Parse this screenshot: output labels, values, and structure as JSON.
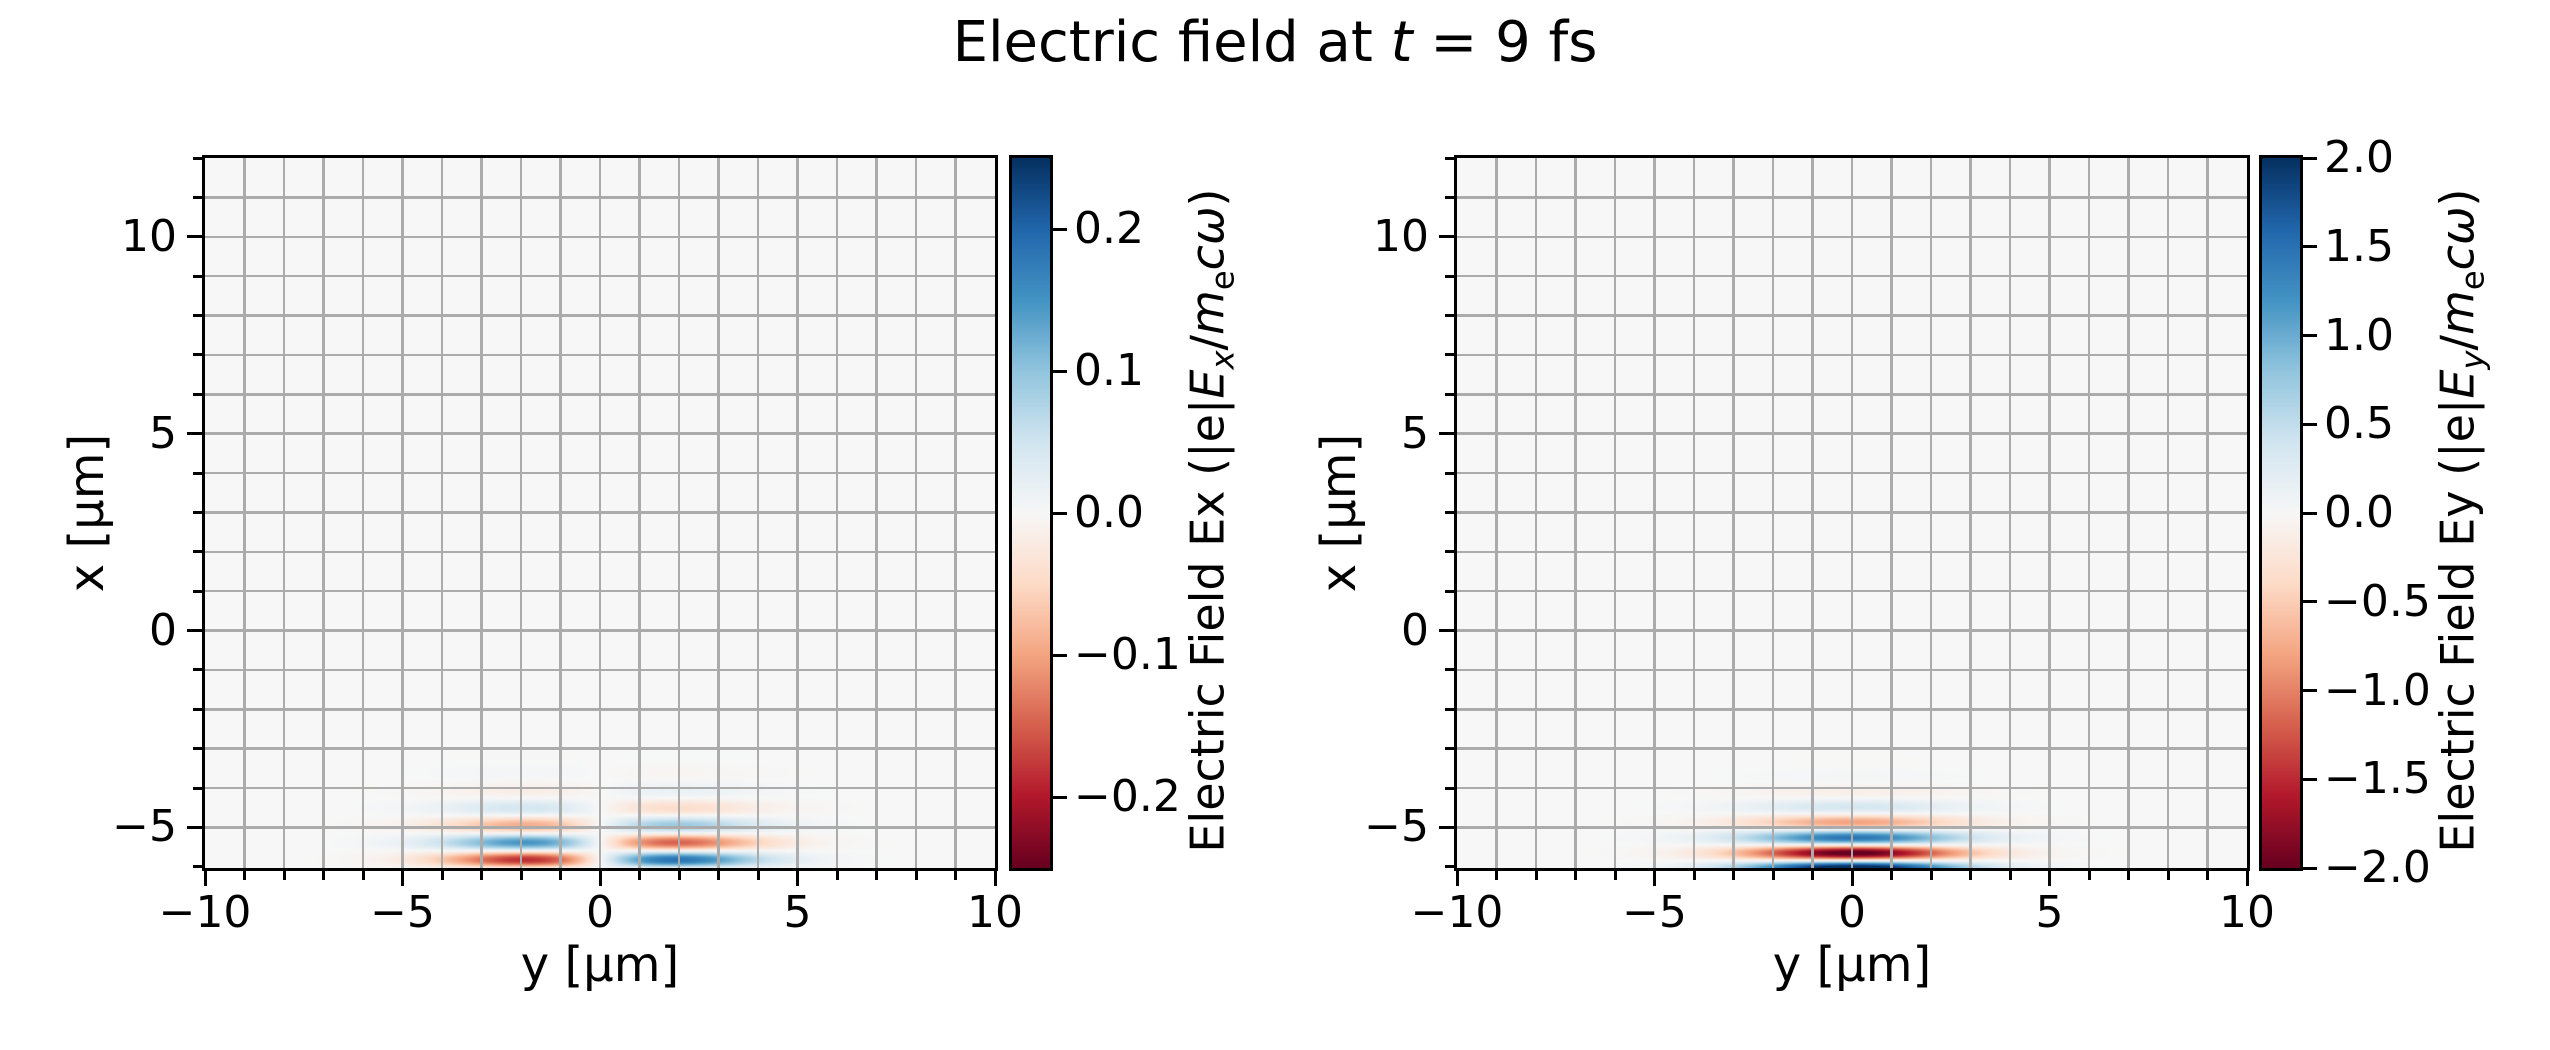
{
  "figure": {
    "title": {
      "pre": "Electric field at ",
      "t": "t",
      "post": " = 9 fs"
    }
  },
  "chart_data": {
    "type": "heatmap",
    "title": "Electric field at t = 9 fs",
    "colormap": "RdBu",
    "colormap_stops": [
      "#67001f",
      "#b2182b",
      "#d6604d",
      "#f4a582",
      "#fddbc7",
      "#f7f7f7",
      "#d1e5f0",
      "#92c5de",
      "#4393c3",
      "#2166ac",
      "#053061"
    ],
    "grid": true,
    "grid_spacing_um": 1,
    "panels": [
      {
        "name": "Ex",
        "xlabel": "y [μm]",
        "ylabel": "x [μm]",
        "xlim": [
          -10,
          10
        ],
        "ylim": [
          -6.03,
          12.0
        ],
        "xtick_vals": [
          -10,
          -5,
          0,
          5,
          10
        ],
        "xtick_labels": [
          "−10",
          "−5",
          "0",
          "5",
          "10"
        ],
        "ytick_vals": [
          10,
          5,
          0,
          -5
        ],
        "ytick_labels": [
          "10",
          "5",
          "0",
          "−5"
        ],
        "colorbar": {
          "vmin": -0.25,
          "vmax": 0.25,
          "tick_vals": [
            0.2,
            0.1,
            0.0,
            -0.1,
            -0.2
          ],
          "tick_labels": [
            "0.2",
            "0.1",
            "0.0",
            "−0.1",
            "−0.2"
          ],
          "label_plain": "Electric Field Ex (|e|Ex/mecω)",
          "label_parts": [
            {
              "t": "Electric Field Ex (|e|"
            },
            {
              "t": "E",
              "i": 1
            },
            {
              "t": "x",
              "i": 1,
              "s": 1
            },
            {
              "t": "/"
            },
            {
              "t": "m",
              "i": 1
            },
            {
              "t": "e",
              "s": 1
            },
            {
              "t": "c",
              "i": 1
            },
            {
              "t": "ω",
              "i": 1
            },
            {
              "t": ")"
            }
          ]
        },
        "field_model": {
          "description": "Longitudinal laser field: antisymmetric in y (node at y=0), lobes peaking near y=±1.9 μm, oscillating along x near the lower window edge (pulse centered ≈ x=-6 μm), peak |Ex| ≈ 0.19",
          "symmetry": "antisymmetric-in-y",
          "amplitude": 0.19,
          "wavelength_um": 0.9,
          "phase_ref_um": -6.03,
          "envelope_center_um": -6.0,
          "envelope_sigma_um": 0.9,
          "transverse_peak_um": 1.9
        }
      },
      {
        "name": "Ey",
        "xlabel": "y [μm]",
        "ylabel": "x [μm]",
        "xlim": [
          -10,
          10
        ],
        "ylim": [
          -6.03,
          12.0
        ],
        "xtick_vals": [
          -10,
          -5,
          0,
          5,
          10
        ],
        "xtick_labels": [
          "−10",
          "−5",
          "0",
          "5",
          "10"
        ],
        "ytick_vals": [
          10,
          5,
          0,
          -5
        ],
        "ytick_labels": [
          "10",
          "5",
          "0",
          "−5"
        ],
        "colorbar": {
          "vmin": -2.0,
          "vmax": 2.0,
          "tick_vals": [
            2.0,
            1.5,
            1.0,
            0.5,
            0.0,
            -0.5,
            -1.0,
            -1.5,
            -2.0
          ],
          "tick_labels": [
            "2.0",
            "1.5",
            "1.0",
            "0.5",
            "0.0",
            "−0.5",
            "−1.0",
            "−1.5",
            "−2.0"
          ],
          "label_plain": "Electric Field Ey (|e|Ey/mecω)",
          "label_parts": [
            {
              "t": "Electric Field Ey (|e|"
            },
            {
              "t": "E",
              "i": 1
            },
            {
              "t": "y",
              "i": 1,
              "s": 1
            },
            {
              "t": "/"
            },
            {
              "t": "m",
              "i": 1
            },
            {
              "t": "e",
              "s": 1
            },
            {
              "t": "c",
              "i": 1
            },
            {
              "t": "ω",
              "i": 1
            },
            {
              "t": ")"
            }
          ]
        },
        "field_model": {
          "description": "Main transverse laser field: Gaussian beam symmetric about y=0 (waist ≈ 2.7 μm), oscillating along x with λ ≈ 0.8 μm near the lower window edge, peak |Ey| ≈ 2 (clipped at colorbar limits)",
          "symmetry": "symmetric-in-y",
          "amplitude": 2.3,
          "wavelength_um": 0.8,
          "phase_ref_um": -6.03,
          "envelope_center_um": -6.0,
          "envelope_sigma_um": 0.8,
          "transverse_waist_um": 2.7
        }
      }
    ]
  }
}
